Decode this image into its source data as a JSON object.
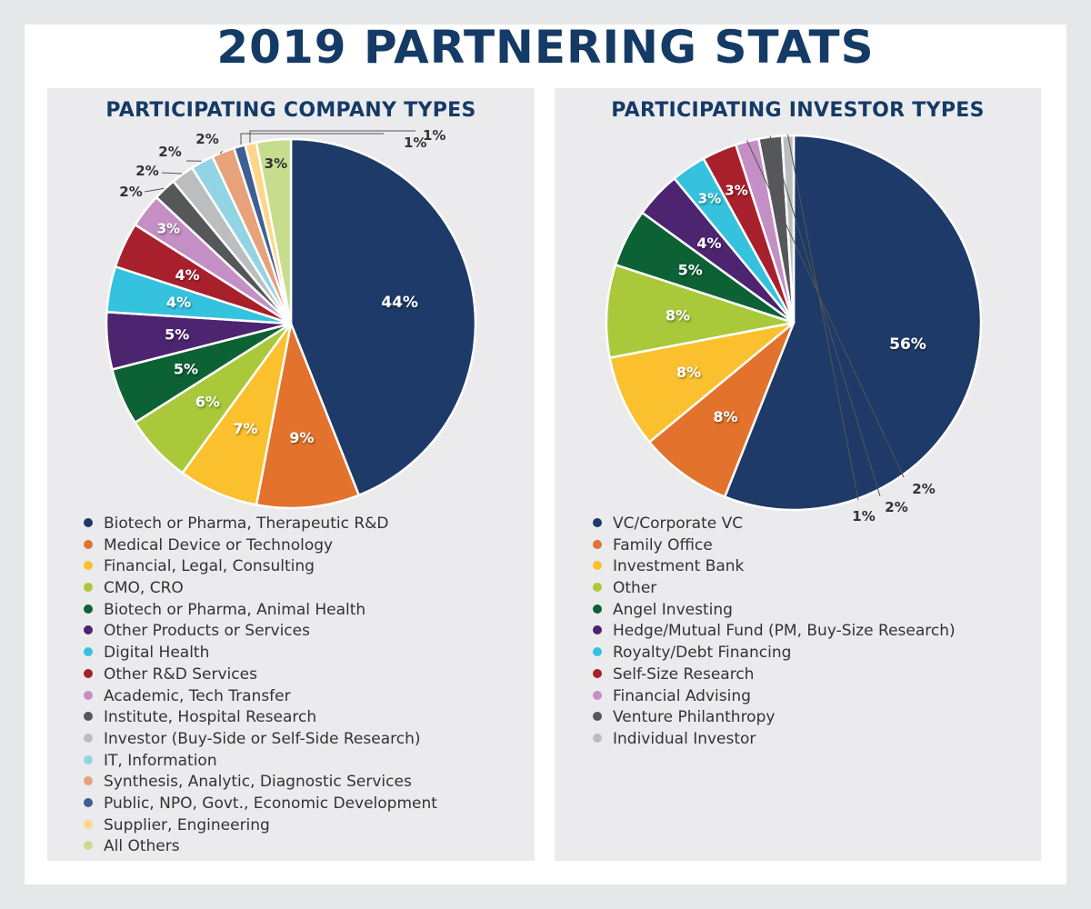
{
  "title": "2019 PARTNERING STATS",
  "chart_data": [
    {
      "type": "pie",
      "title": "PARTICIPATING COMPANY TYPES",
      "legend_placement": "bottom",
      "slices": [
        {
          "label": "Biotech or Pharma, Therapeutic R&D",
          "value": 44,
          "display": "44%",
          "color": "#1e3a68"
        },
        {
          "label": "Medical Device or Technology",
          "value": 9,
          "display": "9%",
          "color": "#e2722c"
        },
        {
          "label": "Financial, Legal, Consulting",
          "value": 7,
          "display": "7%",
          "color": "#fbc02d"
        },
        {
          "label": "CMO, CRO",
          "value": 6,
          "display": "6%",
          "color": "#a9c93b"
        },
        {
          "label": "Biotech or Pharma, Animal Health",
          "value": 5,
          "display": "5%",
          "color": "#0d6235"
        },
        {
          "label": "Other Products or Services",
          "value": 5,
          "display": "5%",
          "color": "#4d2470"
        },
        {
          "label": "Digital Health",
          "value": 4,
          "display": "4%",
          "color": "#34c2de"
        },
        {
          "label": "Other R&D Services",
          "value": 4,
          "display": "4%",
          "color": "#a8202c"
        },
        {
          "label": "Academic, Tech Transfer",
          "value": 3,
          "display": "3%",
          "color": "#c48fc4"
        },
        {
          "label": "Institute, Hospital Research",
          "value": 2,
          "display": "2%",
          "color": "#555759"
        },
        {
          "label": "Investor (Buy-Side or Self-Side Research)",
          "value": 2,
          "display": "2%",
          "color": "#bcbdbf"
        },
        {
          "label": "IT, Information",
          "value": 2,
          "display": "2%",
          "color": "#92d4e4"
        },
        {
          "label": "Synthesis, Analytic, Diagnostic Services",
          "value": 2,
          "display": "2%",
          "color": "#e8a27a"
        },
        {
          "label": "Public, NPO, Govt., Economic Development",
          "value": 1,
          "display": "1%",
          "color": "#3e5f93"
        },
        {
          "label": "Supplier, Engineering",
          "value": 1,
          "display": "1%",
          "color": "#fdd789"
        },
        {
          "label": "All Others",
          "value": 3,
          "display": "3%",
          "color": "#c8dc8e"
        }
      ]
    },
    {
      "type": "pie",
      "title": "PARTICIPATING INVESTOR TYPES",
      "legend_placement": "bottom",
      "slices": [
        {
          "label": "VC/Corporate VC",
          "value": 56,
          "display": "56%",
          "color": "#1e3a68"
        },
        {
          "label": "Family Office",
          "value": 8,
          "display": "8%",
          "color": "#e2722c"
        },
        {
          "label": "Investment Bank",
          "value": 8,
          "display": "8%",
          "color": "#fbc02d"
        },
        {
          "label": "Other",
          "value": 8,
          "display": "8%",
          "color": "#a9c93b"
        },
        {
          "label": "Angel Investing",
          "value": 5,
          "display": "5%",
          "color": "#0d6235"
        },
        {
          "label": "Hedge/Mutual Fund (PM, Buy-Size Research)",
          "value": 4,
          "display": "4%",
          "color": "#4d2470"
        },
        {
          "label": "Royalty/Debt Financing",
          "value": 3,
          "display": "3%",
          "color": "#34c2de"
        },
        {
          "label": "Self-Size Research",
          "value": 3,
          "display": "3%",
          "color": "#a8202c"
        },
        {
          "label": "Financial Advising",
          "value": 2,
          "display": "2%",
          "color": "#c48fc4"
        },
        {
          "label": "Venture Philanthropy",
          "value": 2,
          "display": "2%",
          "color": "#555759"
        },
        {
          "label": "Individual Investor",
          "value": 1,
          "display": "1%",
          "color": "#bcbdbf"
        }
      ]
    }
  ]
}
